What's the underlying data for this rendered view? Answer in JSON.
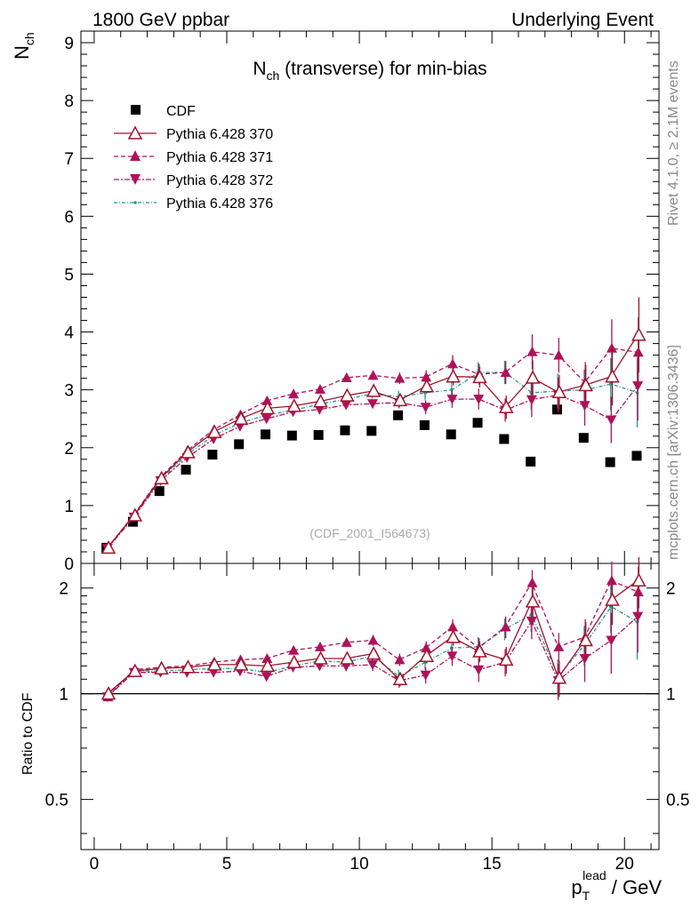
{
  "header": {
    "left": "1800 GeV ppbar",
    "right": "Underlying Event",
    "side_top": "Rivet 4.1.0, ≥ 2.1M events",
    "side_bottom": "mcplots.cern.ch [arXiv:1306.3436]",
    "watermark": "(CDF_2001_I564673)"
  },
  "colors": {
    "cdf": "#000000",
    "p370": "#a0132c",
    "p371": "#b0125a",
    "p372": "#b0125a",
    "p376": "#1f9a8a",
    "refline": "#000000"
  },
  "chart_data": [
    {
      "type": "scatter",
      "title_main": "N",
      "title_sub": "ch",
      "title_rest": " (transverse) for min-bias",
      "ylabel_main": "N",
      "ylabel_sub": "ch",
      "ylim": [
        0,
        9.2
      ],
      "yticks": [
        "0",
        "1",
        "2",
        "3",
        "4",
        "5",
        "6",
        "7",
        "8",
        "9"
      ],
      "x": [
        0.5,
        1.5,
        2.5,
        3.5,
        4.5,
        5.5,
        6.5,
        7.5,
        8.5,
        9.5,
        10.5,
        11.5,
        12.5,
        13.5,
        14.5,
        15.5,
        16.5,
        17.5,
        18.5,
        19.5,
        20.5
      ],
      "series": [
        {
          "name": "CDF",
          "key": "cdf",
          "marker": "square",
          "line": "none",
          "values": [
            0.27,
            0.72,
            1.25,
            1.62,
            1.88,
            2.06,
            2.23,
            2.21,
            2.22,
            2.3,
            2.29,
            2.56,
            2.39,
            2.23,
            2.43,
            2.15,
            1.76,
            2.66,
            2.17,
            1.75,
            1.86
          ],
          "errors": [
            0.01,
            0.01,
            0.01,
            0.01,
            0.01,
            0.01,
            0.01,
            0.01,
            0.01,
            0.01,
            0.01,
            0.01,
            0.01,
            0.01,
            0.01,
            0.01,
            0.01,
            0.01,
            0.01,
            0.01,
            0.01
          ]
        },
        {
          "name": "Pythia 6.428 370",
          "key": "p370",
          "marker": "triangle-up-open",
          "line": "solid",
          "values": [
            0.27,
            0.83,
            1.47,
            1.92,
            2.27,
            2.5,
            2.68,
            2.72,
            2.8,
            2.9,
            2.98,
            2.82,
            3.06,
            3.23,
            3.22,
            2.7,
            3.21,
            2.96,
            3.08,
            3.23,
            3.95
          ],
          "errors": [
            0.01,
            0.02,
            0.02,
            0.03,
            0.04,
            0.05,
            0.06,
            0.06,
            0.06,
            0.07,
            0.08,
            0.1,
            0.12,
            0.15,
            0.18,
            0.2,
            0.3,
            0.3,
            0.35,
            0.5,
            0.65
          ]
        },
        {
          "name": "Pythia 6.428 371",
          "key": "p371",
          "marker": "triangle-up",
          "line": "dashed",
          "values": [
            0.27,
            0.84,
            1.49,
            1.95,
            2.31,
            2.57,
            2.81,
            2.93,
            3.01,
            3.21,
            3.25,
            3.2,
            3.22,
            3.45,
            3.27,
            3.3,
            3.66,
            3.6,
            3.13,
            3.72,
            3.65
          ],
          "errors": [
            0.01,
            0.02,
            0.02,
            0.03,
            0.04,
            0.05,
            0.05,
            0.06,
            0.06,
            0.07,
            0.08,
            0.1,
            0.12,
            0.15,
            0.18,
            0.2,
            0.3,
            0.3,
            0.35,
            0.5,
            0.6
          ]
        },
        {
          "name": "Pythia 6.428 372",
          "key": "p372",
          "marker": "triangle-down",
          "line": "dashdot",
          "values": [
            0.26,
            0.8,
            1.43,
            1.83,
            2.15,
            2.37,
            2.5,
            2.62,
            2.66,
            2.74,
            2.76,
            2.78,
            2.7,
            2.84,
            2.84,
            2.65,
            2.83,
            2.91,
            2.73,
            2.48,
            3.07
          ],
          "errors": [
            0.01,
            0.02,
            0.02,
            0.03,
            0.04,
            0.05,
            0.05,
            0.06,
            0.06,
            0.07,
            0.08,
            0.1,
            0.12,
            0.15,
            0.18,
            0.2,
            0.3,
            0.3,
            0.35,
            0.4,
            0.6
          ]
        },
        {
          "name": "Pythia 6.428 376",
          "key": "p376",
          "marker": "dot",
          "line": "dotdash",
          "values": [
            0.27,
            0.82,
            1.45,
            1.88,
            2.21,
            2.43,
            2.56,
            2.65,
            2.75,
            2.84,
            2.93,
            2.88,
            2.95,
            3.0,
            3.3,
            3.3,
            2.95,
            2.98,
            3.0,
            3.1,
            2.95
          ],
          "errors": [
            0.01,
            0.02,
            0.02,
            0.03,
            0.04,
            0.05,
            0.05,
            0.06,
            0.06,
            0.07,
            0.08,
            0.1,
            0.12,
            0.15,
            0.18,
            0.2,
            0.3,
            0.3,
            0.35,
            0.45,
            0.6
          ]
        }
      ]
    },
    {
      "type": "line",
      "ylabel": "Ratio to CDF",
      "yscale": "log",
      "ylim": [
        0.36,
        2.35
      ],
      "yticks": [
        "0.5",
        "1",
        "2"
      ],
      "ytick_values": [
        0.5,
        1,
        2
      ],
      "xlabel_main": "p",
      "xlabel_sub": "T",
      "xlabel_sup": "lead",
      "xlabel_rest": " / GeV",
      "xlim": [
        -0.5,
        21.3
      ],
      "xticks": [
        "0",
        "5",
        "10",
        "15",
        "20"
      ],
      "xtick_values": [
        0,
        5,
        10,
        15,
        20
      ],
      "x": [
        0.5,
        1.5,
        2.5,
        3.5,
        4.5,
        5.5,
        6.5,
        7.5,
        8.5,
        9.5,
        10.5,
        11.5,
        12.5,
        13.5,
        14.5,
        15.5,
        16.5,
        17.5,
        18.5,
        19.5,
        20.5
      ],
      "reference": 1.0,
      "series": [
        {
          "name": "Pythia 6.428 370",
          "key": "p370",
          "marker": "triangle-up-open",
          "line": "solid",
          "values": [
            1.0,
            1.16,
            1.18,
            1.19,
            1.21,
            1.21,
            1.2,
            1.23,
            1.26,
            1.26,
            1.3,
            1.1,
            1.28,
            1.45,
            1.32,
            1.25,
            1.83,
            1.11,
            1.42,
            1.85,
            2.1
          ],
          "errors": [
            0.01,
            0.02,
            0.02,
            0.02,
            0.03,
            0.03,
            0.03,
            0.03,
            0.03,
            0.04,
            0.05,
            0.05,
            0.06,
            0.08,
            0.09,
            0.11,
            0.18,
            0.13,
            0.18,
            0.28,
            0.35
          ]
        },
        {
          "name": "Pythia 6.428 371",
          "key": "p371",
          "marker": "triangle-up",
          "line": "dashed",
          "values": [
            0.98,
            1.17,
            1.19,
            1.2,
            1.23,
            1.25,
            1.26,
            1.33,
            1.36,
            1.4,
            1.42,
            1.25,
            1.35,
            1.55,
            1.35,
            1.55,
            2.07,
            1.36,
            1.45,
            2.1,
            1.95
          ],
          "errors": [
            0.01,
            0.02,
            0.02,
            0.02,
            0.03,
            0.03,
            0.03,
            0.03,
            0.03,
            0.04,
            0.05,
            0.05,
            0.06,
            0.08,
            0.09,
            0.11,
            0.18,
            0.13,
            0.18,
            0.28,
            0.35
          ]
        },
        {
          "name": "Pythia 6.428 372",
          "key": "p372",
          "marker": "triangle-down",
          "line": "dashdot",
          "values": [
            0.98,
            1.15,
            1.15,
            1.15,
            1.15,
            1.16,
            1.12,
            1.19,
            1.2,
            1.2,
            1.21,
            1.09,
            1.13,
            1.28,
            1.17,
            1.23,
            1.61,
            1.09,
            1.26,
            1.42,
            1.66
          ],
          "errors": [
            0.01,
            0.02,
            0.02,
            0.02,
            0.03,
            0.03,
            0.03,
            0.03,
            0.03,
            0.04,
            0.05,
            0.05,
            0.06,
            0.08,
            0.09,
            0.11,
            0.18,
            0.13,
            0.18,
            0.28,
            0.35
          ]
        },
        {
          "name": "Pythia 6.428 376",
          "key": "p376",
          "marker": "dot",
          "line": "dotdash",
          "values": [
            0.99,
            1.16,
            1.16,
            1.17,
            1.18,
            1.18,
            1.15,
            1.2,
            1.24,
            1.23,
            1.28,
            1.12,
            1.23,
            1.35,
            1.36,
            1.53,
            1.68,
            1.12,
            1.38,
            1.77,
            1.6
          ],
          "errors": [
            0.01,
            0.02,
            0.02,
            0.02,
            0.03,
            0.03,
            0.03,
            0.03,
            0.03,
            0.04,
            0.05,
            0.05,
            0.06,
            0.08,
            0.09,
            0.11,
            0.18,
            0.13,
            0.18,
            0.28,
            0.35
          ]
        }
      ]
    }
  ]
}
